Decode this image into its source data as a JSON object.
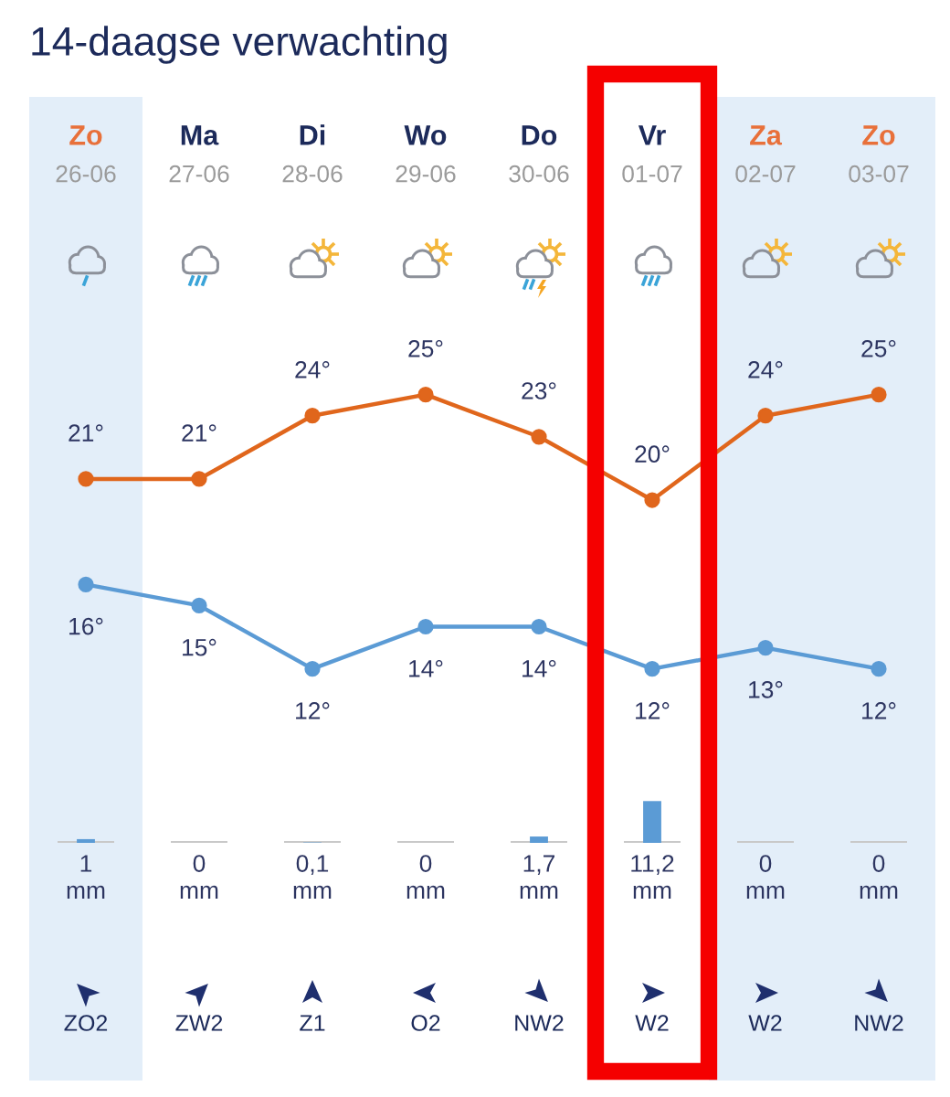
{
  "chart_data": [
    {
      "type": "line",
      "title": "14-daagse verwachting",
      "categories": [
        "Zo\n26-06",
        "Ma\n27-06",
        "Di\n28-06",
        "Wo\n29-06",
        "Do\n30-06",
        "Vr\n01-07",
        "Za\n02-07",
        "Zo\n03-07"
      ],
      "series": [
        {
          "color": "#e0661c",
          "values": [
            21,
            21,
            24,
            25,
            23,
            20,
            24,
            25
          ],
          "value_labels": [
            "21°",
            "21°",
            "24°",
            "25°",
            "23°",
            "20°",
            "24°",
            "25°"
          ]
        },
        {
          "color": "#5b9bd5",
          "values": [
            16,
            15,
            12,
            14,
            14,
            12,
            13,
            12
          ],
          "value_labels": [
            "16°",
            "15°",
            "12°",
            "14°",
            "14°",
            "12°",
            "13°",
            "12°"
          ]
        }
      ],
      "marker": "circle",
      "bands": [
        {
          "axis": "x",
          "from": "Zo\n26-06",
          "to": "Zo\n26-06",
          "color": "#e3eef9"
        },
        {
          "axis": "x",
          "from": "Za\n02-07",
          "to": "Zo\n03-07",
          "color": "#e3eef9"
        }
      ],
      "tick_labels": "x"
    },
    {
      "type": "bar",
      "categories": [
        "ZO2",
        "ZW2",
        "Z1",
        "O2",
        "NW2",
        "W2",
        "W2",
        "NW2"
      ],
      "series": [
        {
          "color": "#5b9bd5",
          "values": [
            1,
            0,
            0.1,
            0,
            1.7,
            11.2,
            0,
            0
          ],
          "value_labels": [
            "1\nmm",
            "0\nmm",
            "0,1\nmm",
            "0\nmm",
            "1,7\nmm",
            "11,2\nmm",
            "0\nmm",
            "0\nmm"
          ]
        }
      ],
      "tick_labels": "x"
    }
  ]
}
